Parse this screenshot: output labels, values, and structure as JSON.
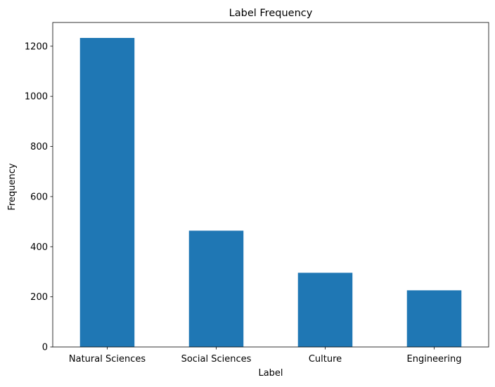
{
  "chart_data": {
    "type": "bar",
    "title": "Label Frequency",
    "xlabel": "Label",
    "ylabel": "Frequency",
    "categories": [
      "Natural Sciences",
      "Social Sciences",
      "Culture",
      "Engineering"
    ],
    "values": [
      1233,
      464,
      296,
      226
    ],
    "ylim": [
      0,
      1294.65
    ],
    "yticks": [
      0,
      200,
      400,
      600,
      800,
      1000,
      1200
    ],
    "grid": false,
    "legend": "none",
    "bar_color": "#1f77b4"
  }
}
